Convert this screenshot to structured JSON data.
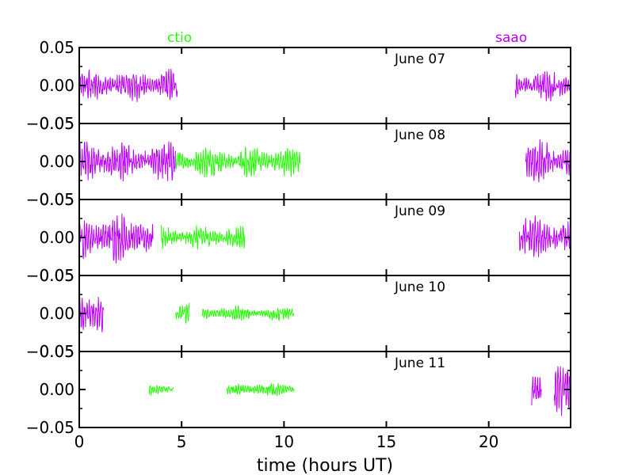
{
  "chart_data": {
    "type": "line",
    "xlabel": "time (hours UT)",
    "xlim": [
      0,
      24
    ],
    "ylim": [
      -0.05,
      0.05
    ],
    "x_ticks": [
      "0",
      "5",
      "10",
      "15",
      "20"
    ],
    "y_ticks": [
      "0.05",
      "0.00",
      "−0.05"
    ],
    "legend": [
      {
        "name": "ctio",
        "color": "#22ff00"
      },
      {
        "name": "saao",
        "color": "#bb00ff"
      }
    ],
    "panels": [
      {
        "label": "June 07",
        "segments": [
          {
            "site": "saao",
            "start": 0.0,
            "end": 4.8,
            "amp": 0.022
          },
          {
            "site": "saao",
            "start": 21.3,
            "end": 24.0,
            "amp": 0.022
          }
        ]
      },
      {
        "label": "June 08",
        "segments": [
          {
            "site": "saao",
            "start": 0.0,
            "end": 4.7,
            "amp": 0.028
          },
          {
            "site": "ctio",
            "start": 4.7,
            "end": 10.8,
            "amp": 0.02
          },
          {
            "site": "saao",
            "start": 21.8,
            "end": 24.0,
            "amp": 0.028
          }
        ]
      },
      {
        "label": "June 09",
        "segments": [
          {
            "site": "saao",
            "start": 0.0,
            "end": 3.6,
            "amp": 0.032
          },
          {
            "site": "ctio",
            "start": 4.0,
            "end": 8.1,
            "amp": 0.016
          },
          {
            "site": "saao",
            "start": 21.5,
            "end": 24.0,
            "amp": 0.028
          }
        ]
      },
      {
        "label": "June 10",
        "segments": [
          {
            "site": "saao",
            "start": 0.0,
            "end": 1.2,
            "amp": 0.035
          },
          {
            "site": "ctio",
            "start": 4.7,
            "end": 5.4,
            "amp": 0.015
          },
          {
            "site": "ctio",
            "start": 6.0,
            "end": 10.5,
            "amp": 0.01
          }
        ]
      },
      {
        "label": "June 11",
        "segments": [
          {
            "site": "ctio",
            "start": 3.4,
            "end": 4.6,
            "amp": 0.008
          },
          {
            "site": "ctio",
            "start": 7.2,
            "end": 10.5,
            "amp": 0.009
          },
          {
            "site": "saao",
            "start": 22.1,
            "end": 22.6,
            "amp": 0.03
          },
          {
            "site": "saao",
            "start": 23.2,
            "end": 24.0,
            "amp": 0.035
          }
        ]
      }
    ]
  }
}
